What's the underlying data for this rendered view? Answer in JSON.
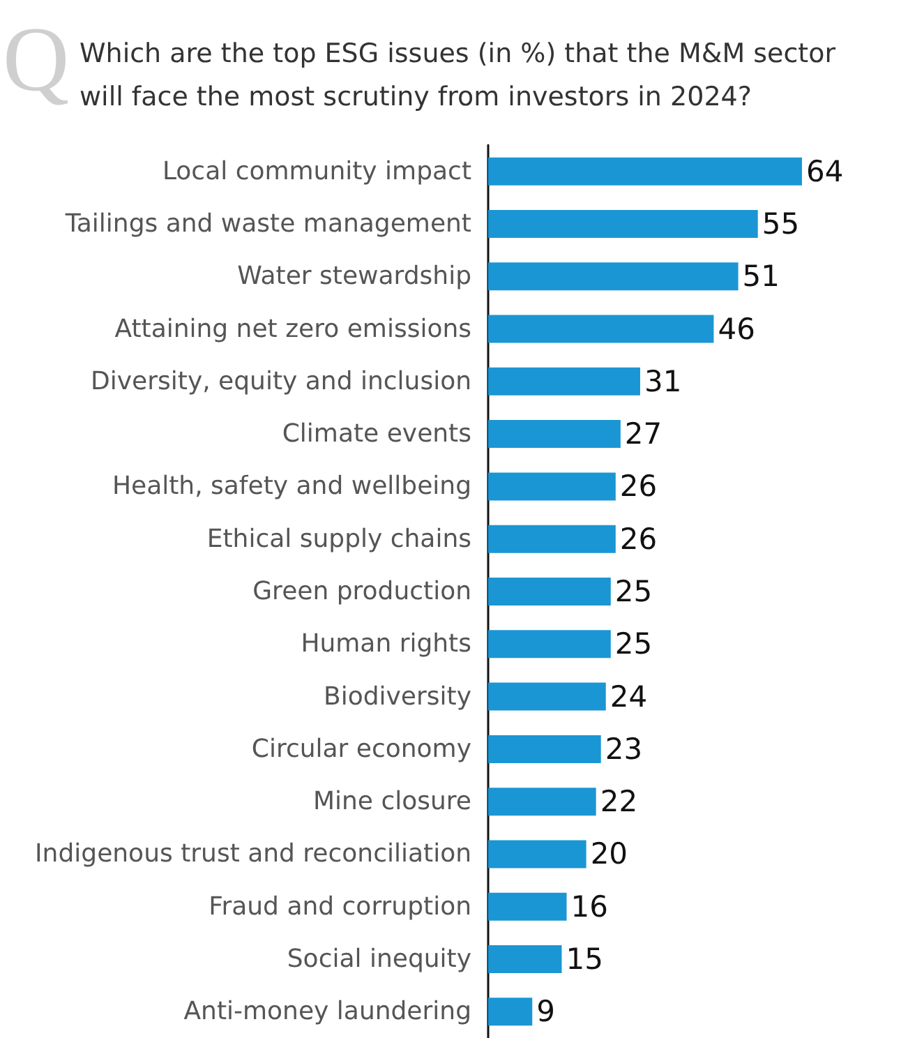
{
  "chart_data": {
    "type": "bar",
    "orientation": "horizontal",
    "title": "Which are the top ESG issues (in %) that the M&M sector\nwill face the most scrutiny from investors in 2024?",
    "annotations": [
      "Q"
    ],
    "categories": [
      "Local community impact",
      "Tailings and waste management",
      "Water stewardship",
      "Attaining net zero emissions",
      "Diversity, equity and inclusion",
      "Climate events",
      "Health, safety and wellbeing",
      "Ethical supply chains",
      "Green production",
      "Human rights",
      "Biodiversity",
      "Circular economy",
      "Mine closure",
      "Indigenous trust and reconciliation",
      "Fraud and corruption",
      "Social inequity",
      "Anti-money laundering"
    ],
    "values": [
      64,
      55,
      51,
      46,
      31,
      27,
      26,
      26,
      25,
      25,
      24,
      23,
      22,
      20,
      16,
      15,
      9
    ],
    "color": "#1a96d4",
    "data_labels": true
  }
}
